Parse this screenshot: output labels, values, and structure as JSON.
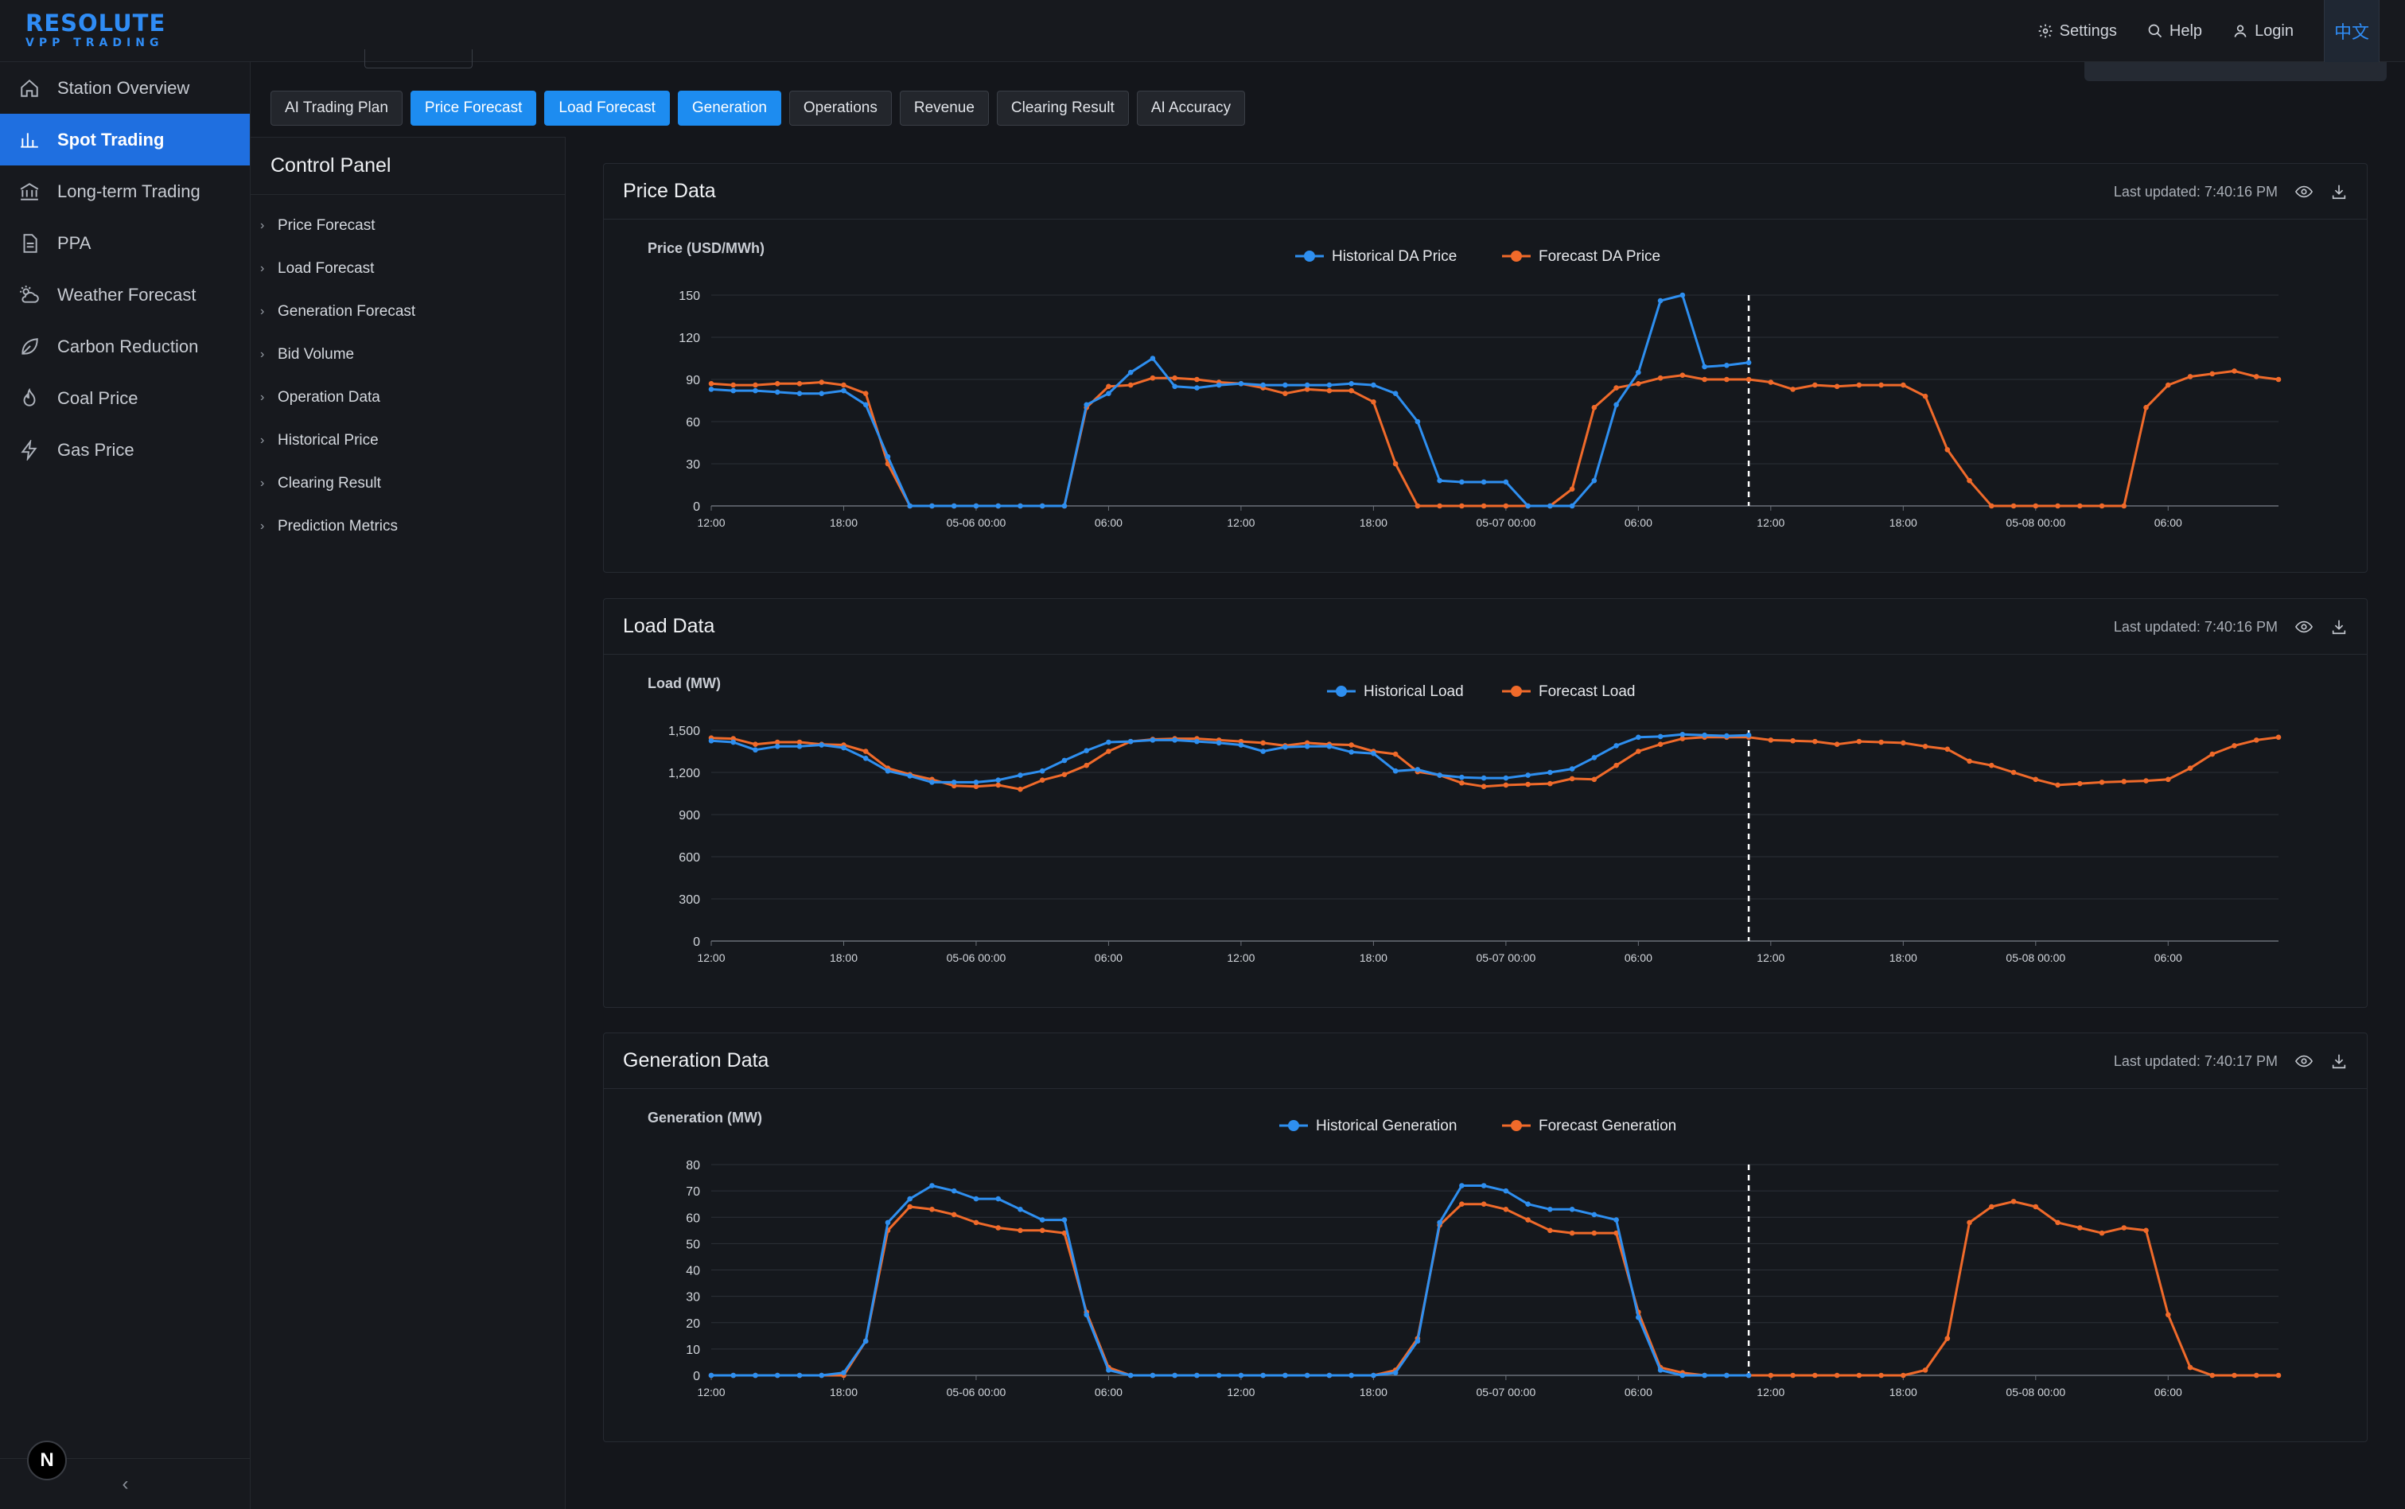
{
  "brand": {
    "name": "RESOLUTE",
    "tagline": "VPP TRADING"
  },
  "topbar": {
    "settings_label": "Settings",
    "help_label": "Help",
    "login_label": "Login",
    "language_label": "中文"
  },
  "sidebar": {
    "items": [
      {
        "label": "Station Overview",
        "icon": "home-icon",
        "active": false
      },
      {
        "label": "Spot Trading",
        "icon": "bar-chart-icon",
        "active": true
      },
      {
        "label": "Long-term Trading",
        "icon": "bank-icon",
        "active": false
      },
      {
        "label": "PPA",
        "icon": "document-icon",
        "active": false
      },
      {
        "label": "Weather Forecast",
        "icon": "weather-icon",
        "active": false
      },
      {
        "label": "Carbon Reduction",
        "icon": "leaf-icon",
        "active": false
      },
      {
        "label": "Coal Price",
        "icon": "flame-icon",
        "active": false
      },
      {
        "label": "Gas Price",
        "icon": "bolt-icon",
        "active": false
      }
    ],
    "collapse_label": "‹",
    "badge_label": "N"
  },
  "tabs": [
    {
      "label": "AI Trading Plan",
      "active": false
    },
    {
      "label": "Price Forecast",
      "active": true
    },
    {
      "label": "Load Forecast",
      "active": true
    },
    {
      "label": "Generation",
      "active": true
    },
    {
      "label": "Operations",
      "active": false
    },
    {
      "label": "Revenue",
      "active": false
    },
    {
      "label": "Clearing Result",
      "active": false
    },
    {
      "label": "AI Accuracy",
      "active": false
    }
  ],
  "control_panel": {
    "title": "Control Panel",
    "items": [
      "Price Forecast",
      "Load Forecast",
      "Generation Forecast",
      "Bid Volume",
      "Operation Data",
      "Historical Price",
      "Clearing Result",
      "Prediction Metrics"
    ]
  },
  "colors": {
    "historical": "#2e8ff0",
    "forecast": "#f06a2a",
    "accent": "#1f6fe0"
  },
  "cards": [
    {
      "title": "Price Data",
      "updated": "Last updated: 7:40:16 PM"
    },
    {
      "title": "Load Data",
      "updated": "Last updated: 7:40:16 PM"
    },
    {
      "title": "Generation Data",
      "updated": "Last updated: 7:40:17 PM"
    }
  ],
  "chart_data": [
    {
      "type": "line",
      "ylabel": "Price (USD/MWh)",
      "ylim": [
        0,
        150
      ],
      "yticks": [
        0,
        30,
        60,
        90,
        120,
        150
      ],
      "xticks": [
        "12:00",
        "18:00",
        "05-06 00:00",
        "06:00",
        "12:00",
        "18:00",
        "05-07 00:00",
        "06:00",
        "12:00",
        "18:00",
        "05-08 00:00",
        "06:00"
      ],
      "xlim": [
        0,
        71
      ],
      "now_marker": 47,
      "legend": "top-center",
      "series": [
        {
          "name": "Historical DA Price",
          "role": "historical",
          "x": [
            0,
            1,
            2,
            3,
            4,
            5,
            6,
            7,
            8,
            9,
            10,
            11,
            12,
            13,
            14,
            15,
            16,
            17,
            18,
            19,
            20,
            21,
            22,
            23,
            24,
            25,
            26,
            27,
            28,
            29,
            30,
            31,
            32,
            33,
            34,
            35,
            36,
            37,
            38,
            39,
            40,
            41,
            42,
            43,
            44,
            45,
            46,
            47
          ],
          "values": [
            83,
            82,
            82,
            81,
            80,
            80,
            82,
            72,
            35,
            0,
            0,
            0,
            0,
            0,
            0,
            0,
            0,
            72,
            80,
            95,
            105,
            85,
            84,
            86,
            87,
            86,
            86,
            86,
            86,
            87,
            86,
            80,
            60,
            18,
            17,
            17,
            17,
            0,
            0,
            0,
            18,
            72,
            95,
            146,
            150,
            99,
            100,
            102
          ]
        },
        {
          "name": "Forecast DA Price",
          "role": "forecast",
          "x": [
            0,
            1,
            2,
            3,
            4,
            5,
            6,
            7,
            8,
            9,
            10,
            11,
            12,
            13,
            14,
            15,
            16,
            17,
            18,
            19,
            20,
            21,
            22,
            23,
            24,
            25,
            26,
            27,
            28,
            29,
            30,
            31,
            32,
            33,
            34,
            35,
            36,
            37,
            38,
            39,
            40,
            41,
            42,
            43,
            44,
            45,
            46,
            47,
            48,
            49,
            50,
            51,
            52,
            53,
            54,
            55,
            56,
            57,
            58,
            59,
            60,
            61,
            62,
            63,
            64,
            65,
            66,
            67,
            68,
            69,
            70,
            71
          ],
          "values": [
            87,
            86,
            86,
            87,
            87,
            88,
            86,
            80,
            30,
            0,
            0,
            0,
            0,
            0,
            0,
            0,
            0,
            70,
            85,
            86,
            91,
            91,
            90,
            88,
            87,
            84,
            80,
            83,
            82,
            82,
            74,
            30,
            0,
            0,
            0,
            0,
            0,
            0,
            0,
            12,
            70,
            84,
            87,
            91,
            93,
            90,
            90,
            90,
            88,
            83,
            86,
            85,
            86,
            86,
            86,
            78,
            40,
            18,
            0,
            0,
            0,
            0,
            0,
            0,
            0,
            70,
            86,
            92,
            94,
            96,
            92,
            90
          ]
        }
      ]
    },
    {
      "type": "line",
      "ylabel": "Load (MW)",
      "ylim": [
        0,
        1500
      ],
      "yticks": [
        0,
        300,
        600,
        900,
        1200,
        1500
      ],
      "xticks": [
        "12:00",
        "18:00",
        "05-06 00:00",
        "06:00",
        "12:00",
        "18:00",
        "05-07 00:00",
        "06:00",
        "12:00",
        "18:00",
        "05-08 00:00",
        "06:00"
      ],
      "xlim": [
        0,
        71
      ],
      "now_marker": 47,
      "legend": "top-center",
      "series": [
        {
          "name": "Historical Load",
          "role": "historical",
          "x": [
            0,
            1,
            2,
            3,
            4,
            5,
            6,
            7,
            8,
            9,
            10,
            11,
            12,
            13,
            14,
            15,
            16,
            17,
            18,
            19,
            20,
            21,
            22,
            23,
            24,
            25,
            26,
            27,
            28,
            29,
            30,
            31,
            32,
            33,
            34,
            35,
            36,
            37,
            38,
            39,
            40,
            41,
            42,
            43,
            44,
            45,
            46,
            47
          ],
          "values": [
            1425,
            1415,
            1360,
            1385,
            1385,
            1395,
            1375,
            1300,
            1210,
            1175,
            1130,
            1130,
            1130,
            1145,
            1180,
            1210,
            1285,
            1355,
            1415,
            1420,
            1430,
            1430,
            1420,
            1410,
            1395,
            1350,
            1380,
            1385,
            1385,
            1345,
            1335,
            1210,
            1220,
            1180,
            1165,
            1160,
            1160,
            1180,
            1200,
            1225,
            1305,
            1390,
            1450,
            1455,
            1470,
            1465,
            1460,
            1465
          ]
        },
        {
          "name": "Forecast Load",
          "role": "forecast",
          "x": [
            0,
            1,
            2,
            3,
            4,
            5,
            6,
            7,
            8,
            9,
            10,
            11,
            12,
            13,
            14,
            15,
            16,
            17,
            18,
            19,
            20,
            21,
            22,
            23,
            24,
            25,
            26,
            27,
            28,
            29,
            30,
            31,
            32,
            33,
            34,
            35,
            36,
            37,
            38,
            39,
            40,
            41,
            42,
            43,
            44,
            45,
            46,
            47,
            48,
            49,
            50,
            51,
            52,
            53,
            54,
            55,
            56,
            57,
            58,
            59,
            60,
            61,
            62,
            63,
            64,
            65,
            66,
            67,
            68,
            69,
            70,
            71
          ],
          "values": [
            1445,
            1440,
            1400,
            1415,
            1415,
            1400,
            1395,
            1350,
            1230,
            1185,
            1150,
            1105,
            1100,
            1110,
            1080,
            1145,
            1185,
            1250,
            1350,
            1420,
            1435,
            1440,
            1440,
            1430,
            1420,
            1410,
            1390,
            1410,
            1400,
            1395,
            1350,
            1330,
            1205,
            1180,
            1125,
            1100,
            1110,
            1115,
            1120,
            1155,
            1150,
            1250,
            1350,
            1400,
            1440,
            1450,
            1450,
            1450,
            1430,
            1425,
            1420,
            1400,
            1420,
            1415,
            1410,
            1385,
            1365,
            1280,
            1250,
            1200,
            1150,
            1110,
            1120,
            1130,
            1135,
            1140,
            1150,
            1230,
            1330,
            1390,
            1430,
            1450
          ]
        }
      ]
    },
    {
      "type": "line",
      "ylabel": "Generation (MW)",
      "ylim": [
        0,
        80
      ],
      "yticks": [
        0,
        10,
        20,
        30,
        40,
        50,
        60,
        70,
        80
      ],
      "xticks": [
        "12:00",
        "18:00",
        "05-06 00:00",
        "06:00",
        "12:00",
        "18:00",
        "05-07 00:00",
        "06:00",
        "12:00",
        "18:00",
        "05-08 00:00",
        "06:00"
      ],
      "xlim": [
        0,
        71
      ],
      "now_marker": 47,
      "legend": "top-center",
      "series": [
        {
          "name": "Historical Generation",
          "role": "historical",
          "x": [
            0,
            1,
            2,
            3,
            4,
            5,
            6,
            7,
            8,
            9,
            10,
            11,
            12,
            13,
            14,
            15,
            16,
            17,
            18,
            19,
            20,
            21,
            22,
            23,
            24,
            25,
            26,
            27,
            28,
            29,
            30,
            31,
            32,
            33,
            34,
            35,
            36,
            37,
            38,
            39,
            40,
            41,
            42,
            43,
            44,
            45,
            46,
            47
          ],
          "values": [
            0,
            0,
            0,
            0,
            0,
            0,
            1,
            13,
            58,
            67,
            72,
            70,
            67,
            67,
            63,
            59,
            59,
            23,
            2,
            0,
            0,
            0,
            0,
            0,
            0,
            0,
            0,
            0,
            0,
            0,
            0,
            1,
            13,
            58,
            72,
            72,
            70,
            65,
            63,
            63,
            61,
            59,
            22,
            2,
            0,
            0,
            0,
            0
          ]
        },
        {
          "name": "Forecast Generation",
          "role": "forecast",
          "x": [
            0,
            1,
            2,
            3,
            4,
            5,
            6,
            7,
            8,
            9,
            10,
            11,
            12,
            13,
            14,
            15,
            16,
            17,
            18,
            19,
            20,
            21,
            22,
            23,
            24,
            25,
            26,
            27,
            28,
            29,
            30,
            31,
            32,
            33,
            34,
            35,
            36,
            37,
            38,
            39,
            40,
            41,
            42,
            43,
            44,
            45,
            46,
            47,
            48,
            49,
            50,
            51,
            52,
            53,
            54,
            55,
            56,
            57,
            58,
            59,
            60,
            61,
            62,
            63,
            64,
            65,
            66,
            67,
            68,
            69,
            70,
            71
          ],
          "values": [
            0,
            0,
            0,
            0,
            0,
            0,
            0,
            13,
            55,
            64,
            63,
            61,
            58,
            56,
            55,
            55,
            54,
            24,
            3,
            0,
            0,
            0,
            0,
            0,
            0,
            0,
            0,
            0,
            0,
            0,
            0,
            2,
            14,
            57,
            65,
            65,
            63,
            59,
            55,
            54,
            54,
            54,
            24,
            3,
            1,
            0,
            0,
            0,
            0,
            0,
            0,
            0,
            0,
            0,
            0,
            2,
            14,
            58,
            64,
            66,
            64,
            58,
            56,
            54,
            56,
            55,
            23,
            3,
            0,
            0,
            0,
            0
          ]
        }
      ]
    }
  ]
}
